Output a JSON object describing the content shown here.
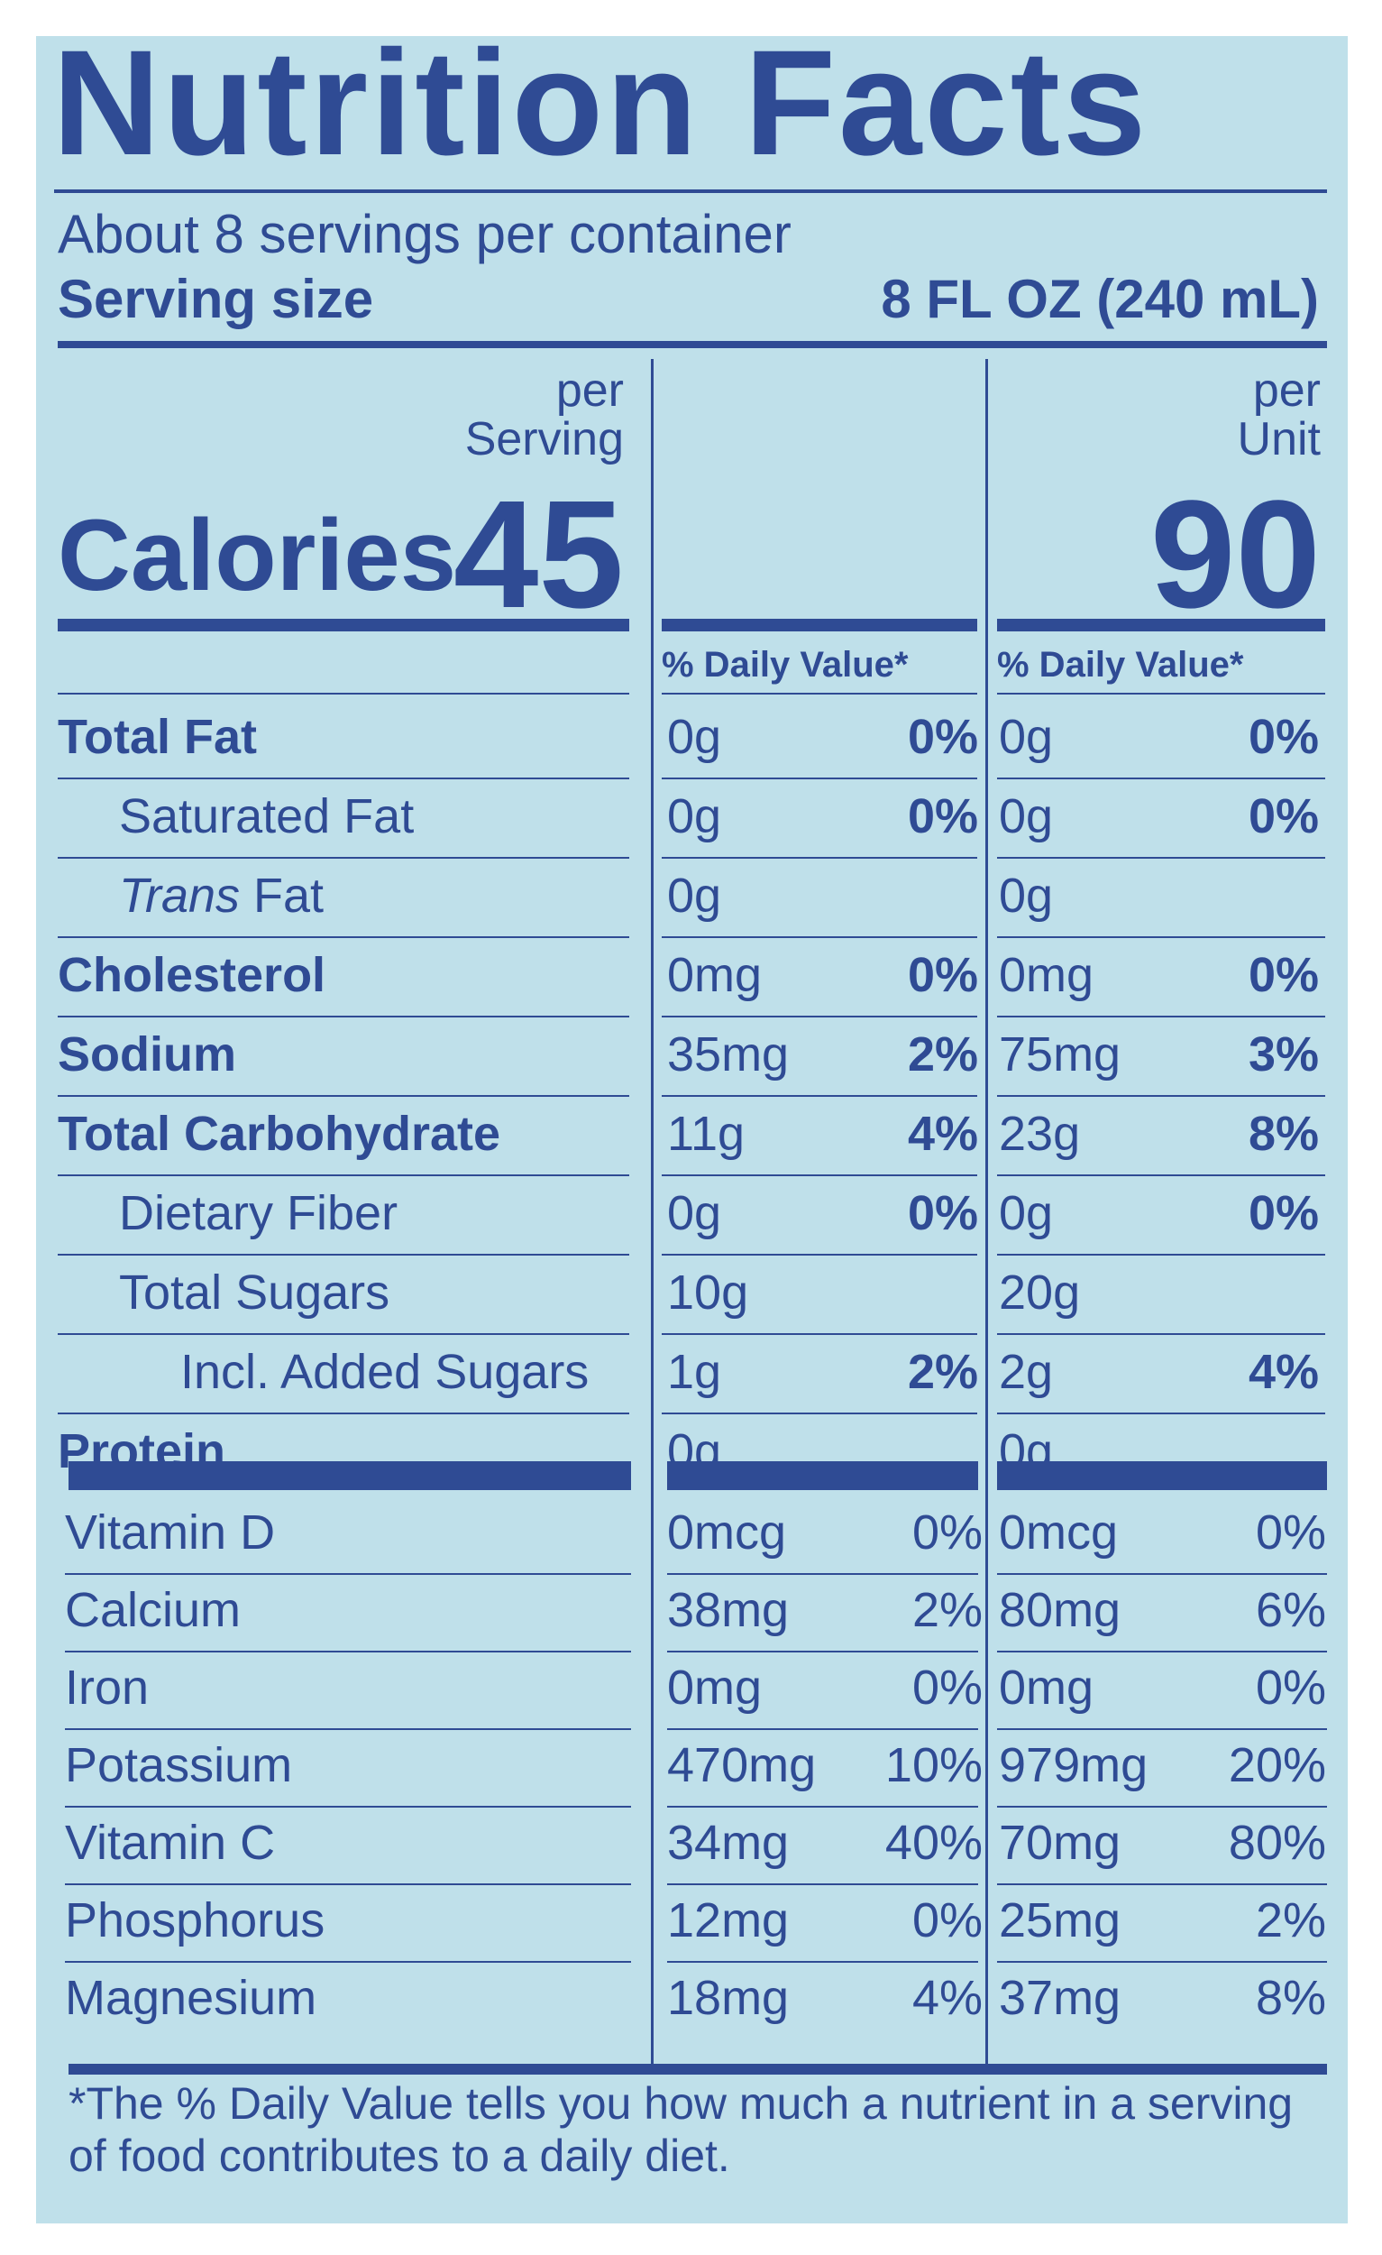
{
  "title": "Nutrition Facts",
  "servings_per_container": "About 8 servings per container",
  "serving_size_label": "Serving size",
  "serving_size_value": "8 FL OZ (240 mL)",
  "columns": [
    {
      "per": "per",
      "unit": "Serving",
      "calories": "45",
      "dv_header": "% Daily Value*"
    },
    {
      "per": "per",
      "unit": "Unit",
      "calories": "90",
      "dv_header": "% Daily Value*"
    }
  ],
  "calories_label": "Calories",
  "nutrients": [
    {
      "name": "Total Fat",
      "style": "bold",
      "serving": {
        "amount": "0g",
        "dv": "0%"
      },
      "unit": {
        "amount": "0g",
        "dv": "0%"
      }
    },
    {
      "name": "Saturated Fat",
      "style": "indent1",
      "serving": {
        "amount": "0g",
        "dv": "0%"
      },
      "unit": {
        "amount": "0g",
        "dv": "0%"
      }
    },
    {
      "name": "Trans",
      "name_suffix": " Fat",
      "style": "indent1-italic",
      "serving": {
        "amount": "0g",
        "dv": ""
      },
      "unit": {
        "amount": "0g",
        "dv": ""
      }
    },
    {
      "name": "Cholesterol",
      "style": "bold",
      "serving": {
        "amount": "0mg",
        "dv": "0%"
      },
      "unit": {
        "amount": "0mg",
        "dv": "0%"
      }
    },
    {
      "name": "Sodium",
      "style": "bold",
      "serving": {
        "amount": "35mg",
        "dv": "2%"
      },
      "unit": {
        "amount": "75mg",
        "dv": "3%"
      }
    },
    {
      "name": "Total Carbohydrate",
      "style": "bold",
      "serving": {
        "amount": "11g",
        "dv": "4%"
      },
      "unit": {
        "amount": "23g",
        "dv": "8%"
      }
    },
    {
      "name": "Dietary Fiber",
      "style": "indent1",
      "serving": {
        "amount": "0g",
        "dv": "0%"
      },
      "unit": {
        "amount": "0g",
        "dv": "0%"
      }
    },
    {
      "name": "Total Sugars",
      "style": "indent1",
      "serving": {
        "amount": "10g",
        "dv": ""
      },
      "unit": {
        "amount": "20g",
        "dv": ""
      }
    },
    {
      "name": "Incl. Added Sugars",
      "style": "indent2",
      "serving": {
        "amount": "1g",
        "dv": "2%"
      },
      "unit": {
        "amount": "2g",
        "dv": "4%"
      }
    },
    {
      "name": "Protein",
      "style": "bold",
      "serving": {
        "amount": "0g",
        "dv": ""
      },
      "unit": {
        "amount": "0g",
        "dv": ""
      }
    }
  ],
  "vitamins": [
    {
      "name": "Vitamin D",
      "serving": {
        "amount": "0mcg",
        "dv": "0%"
      },
      "unit": {
        "amount": "0mcg",
        "dv": "0%"
      }
    },
    {
      "name": "Calcium",
      "serving": {
        "amount": "38mg",
        "dv": "2%"
      },
      "unit": {
        "amount": "80mg",
        "dv": "6%"
      }
    },
    {
      "name": "Iron",
      "serving": {
        "amount": "0mg",
        "dv": "0%"
      },
      "unit": {
        "amount": "0mg",
        "dv": "0%"
      }
    },
    {
      "name": "Potassium",
      "serving": {
        "amount": "470mg",
        "dv": "10%"
      },
      "unit": {
        "amount": "979mg",
        "dv": "20%"
      }
    },
    {
      "name": "Vitamin C",
      "serving": {
        "amount": "34mg",
        "dv": "40%"
      },
      "unit": {
        "amount": "70mg",
        "dv": "80%"
      }
    },
    {
      "name": "Phosphorus",
      "serving": {
        "amount": "12mg",
        "dv": "0%"
      },
      "unit": {
        "amount": "25mg",
        "dv": "2%"
      }
    },
    {
      "name": "Magnesium",
      "serving": {
        "amount": "18mg",
        "dv": "4%"
      },
      "unit": {
        "amount": "37mg",
        "dv": "8%"
      }
    }
  ],
  "footnote": "*The % Daily Value tells you how much a nutrient in a serving of food contributes to a daily diet.",
  "colors": {
    "ink": "#2f4b94",
    "background": "#bfe0ea"
  }
}
